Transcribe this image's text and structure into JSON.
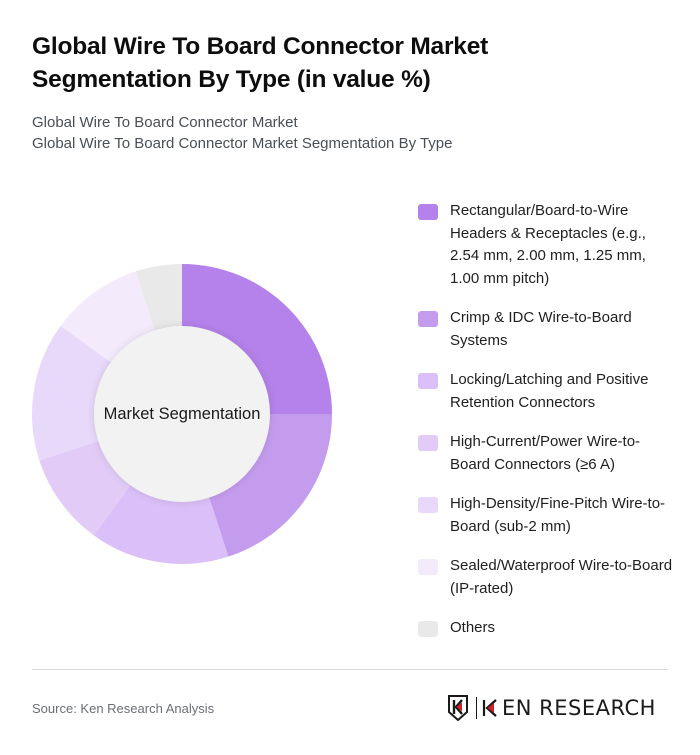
{
  "header": {
    "title": "Global Wire To Board Connector Market Segmentation By Type (in value %)",
    "subtitle_line1": "Global Wire To Board Connector Market",
    "subtitle_line2": "Global Wire To Board Connector Market Segmentation By Type"
  },
  "chart": {
    "center_label": "Market Segmentation"
  },
  "legend": [
    {
      "label": "Rectangular/Board-to-Wire Headers & Receptacles (e.g., 2.54 mm, 2.00 mm, 1.25 mm, 1.00 mm pitch)",
      "color": "#b482ea"
    },
    {
      "label": "Crimp & IDC Wire-to-Board Systems",
      "color": "#c49cee"
    },
    {
      "label": "Locking/Latching and Positive Retention Connectors",
      "color": "#dbbff8"
    },
    {
      "label": "High-Current/Power Wire-to-Board Connectors (≥6 A)",
      "color": "#e2ccf7"
    },
    {
      "label": "High-Density/Fine-Pitch Wire-to-Board (sub-2 mm)",
      "color": "#e8d8fa"
    },
    {
      "label": "Sealed/Waterproof Wire-to-Board (IP-rated)",
      "color": "#f3ebfc"
    },
    {
      "label": "Others",
      "color": "#e9e9e9"
    }
  ],
  "footer": {
    "source": "Source: Ken Research Analysis",
    "logo_text": "KEN RESEARCH",
    "logo_accent": "#d0202a"
  },
  "chart_data": {
    "type": "pie",
    "variant": "donut",
    "title": "Global Wire To Board Connector Market Segmentation By Type (in value %)",
    "center_label": "Market Segmentation",
    "categories": [
      "Rectangular/Board-to-Wire Headers & Receptacles (e.g., 2.54 mm, 2.00 mm, 1.25 mm, 1.00 mm pitch)",
      "Crimp & IDC Wire-to-Board Systems",
      "Locking/Latching and Positive Retention Connectors",
      "High-Current/Power Wire-to-Board Connectors (≥6 A)",
      "High-Density/Fine-Pitch Wire-to-Board (sub-2 mm)",
      "Sealed/Waterproof Wire-to-Board (IP-rated)",
      "Others"
    ],
    "values": [
      25,
      20,
      15,
      10,
      15,
      10,
      5
    ],
    "colors": [
      "#b482ea",
      "#c49cee",
      "#dbbff8",
      "#e2ccf7",
      "#e8d8fa",
      "#f3ebfc",
      "#e9e9e9"
    ],
    "start_angle": "12 o'clock, clockwise",
    "legend_position": "right",
    "unit": "%"
  }
}
